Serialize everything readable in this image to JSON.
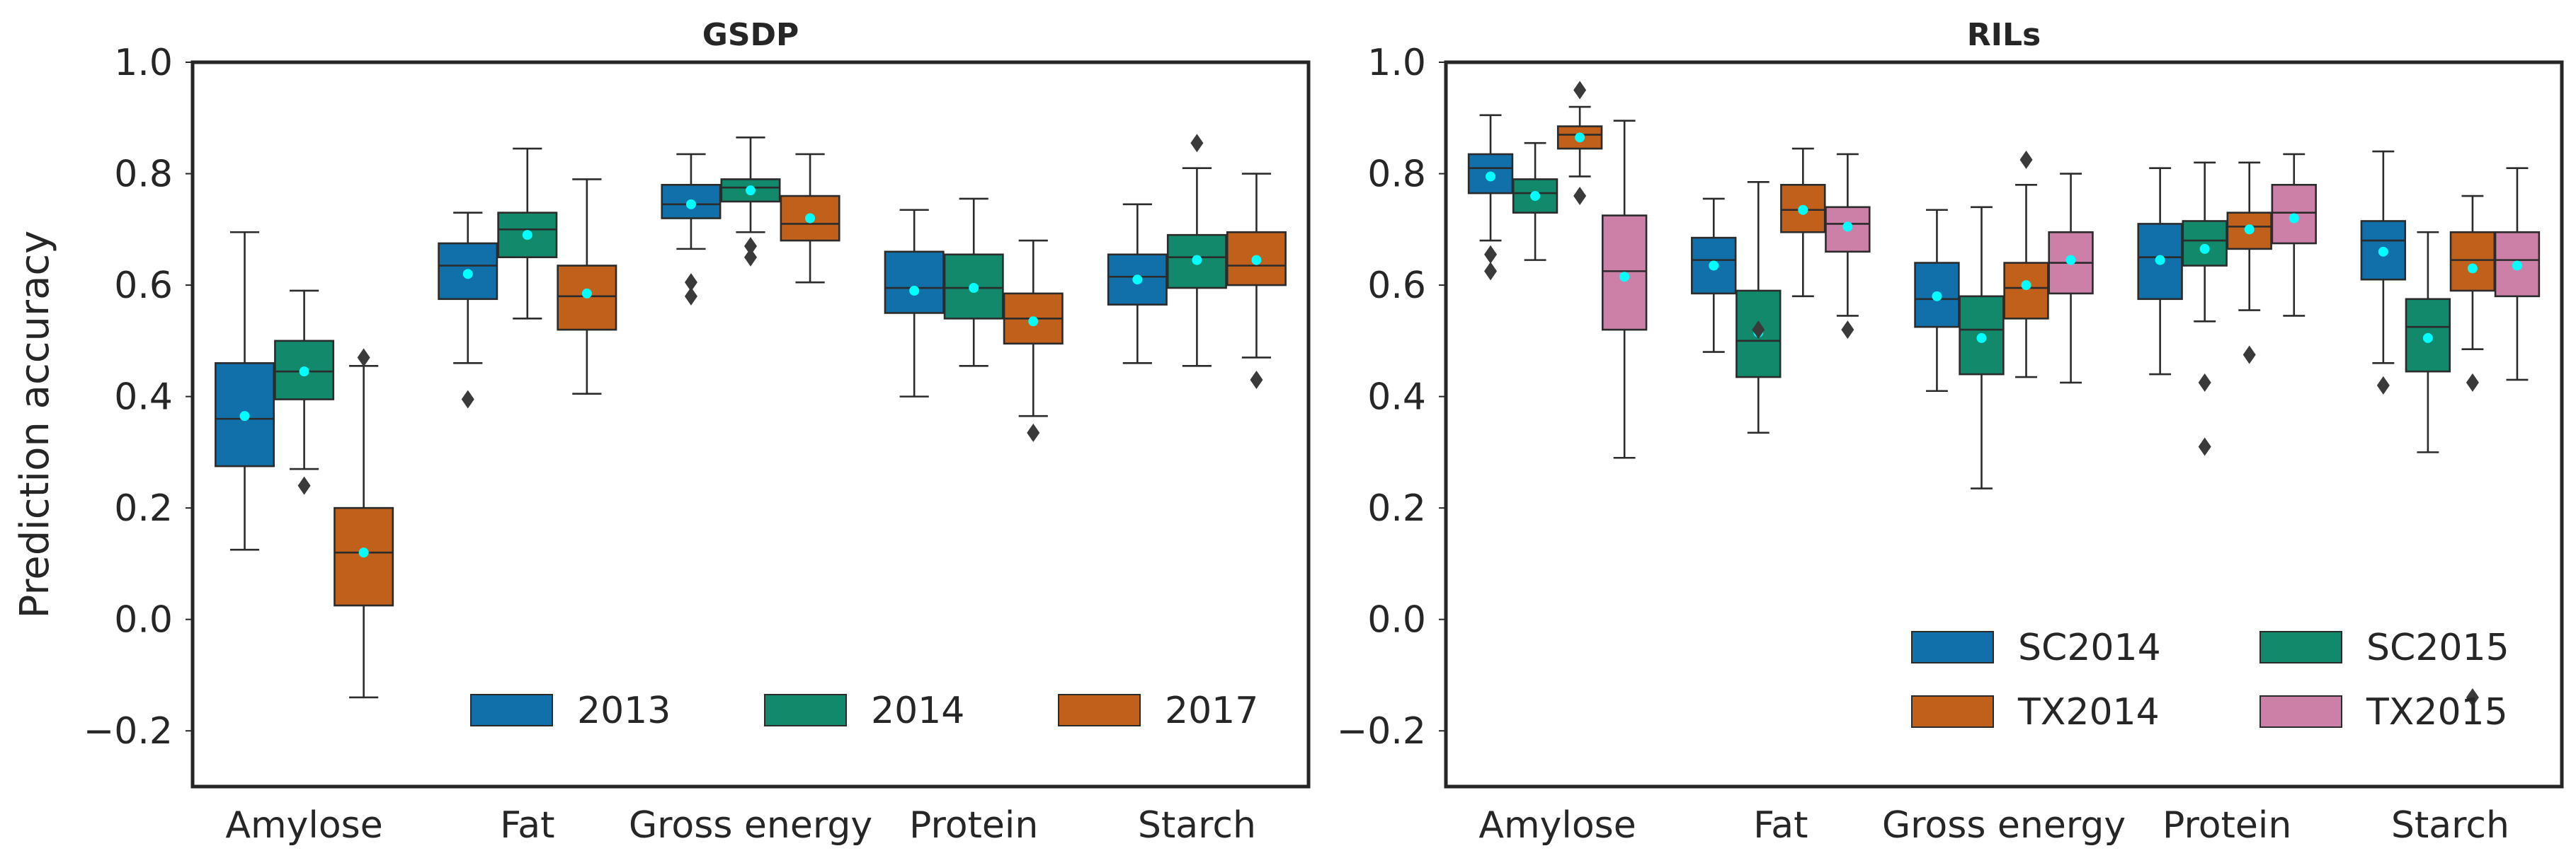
{
  "colors": {
    "2013": "#1170aa",
    "2014": "#11896a",
    "2017": "#c0601a",
    "SC2014": "#1170aa",
    "SC2015": "#11896a",
    "TX2014": "#c0601a",
    "TX2015": "#cc80a8",
    "mean": "#00ffff",
    "line": "#2b2b2b"
  },
  "chart_data": [
    {
      "type": "box",
      "title": "GSDP",
      "ylabel": "Prediction accuracy",
      "xlabel": "",
      "ylim": [
        -0.3,
        1.0
      ],
      "yticks": [
        "1.0",
        "0.8",
        "0.6",
        "0.4",
        "0.2",
        "0.0",
        "−0.2"
      ],
      "ytick_values": [
        1.0,
        0.8,
        0.6,
        0.4,
        0.2,
        0.0,
        -0.2
      ],
      "categories": [
        "Amylose",
        "Fat",
        "Gross energy",
        "Protein",
        "Starch"
      ],
      "legend_position": "lower-right",
      "legend_columns": 3,
      "series": [
        {
          "name": "2013",
          "boxes": [
            {
              "lo": 0.125,
              "q1": 0.275,
              "med": 0.36,
              "q3": 0.46,
              "hi": 0.695,
              "mean": 0.365,
              "fliers": []
            },
            {
              "lo": 0.46,
              "q1": 0.575,
              "med": 0.635,
              "q3": 0.675,
              "hi": 0.73,
              "mean": 0.62,
              "fliers": [
                0.395
              ]
            },
            {
              "lo": 0.665,
              "q1": 0.72,
              "med": 0.745,
              "q3": 0.78,
              "hi": 0.835,
              "mean": 0.745,
              "fliers": [
                0.605,
                0.58
              ]
            },
            {
              "lo": 0.4,
              "q1": 0.55,
              "med": 0.595,
              "q3": 0.66,
              "hi": 0.735,
              "mean": 0.59,
              "fliers": []
            },
            {
              "lo": 0.46,
              "q1": 0.565,
              "med": 0.615,
              "q3": 0.655,
              "hi": 0.745,
              "mean": 0.61,
              "fliers": []
            }
          ]
        },
        {
          "name": "2014",
          "boxes": [
            {
              "lo": 0.27,
              "q1": 0.395,
              "med": 0.445,
              "q3": 0.5,
              "hi": 0.59,
              "mean": 0.445,
              "fliers": [
                0.24
              ]
            },
            {
              "lo": 0.54,
              "q1": 0.65,
              "med": 0.7,
              "q3": 0.73,
              "hi": 0.845,
              "mean": 0.69,
              "fliers": []
            },
            {
              "lo": 0.695,
              "q1": 0.75,
              "med": 0.775,
              "q3": 0.79,
              "hi": 0.865,
              "mean": 0.77,
              "fliers": [
                0.67,
                0.65
              ]
            },
            {
              "lo": 0.455,
              "q1": 0.54,
              "med": 0.595,
              "q3": 0.655,
              "hi": 0.755,
              "mean": 0.595,
              "fliers": []
            },
            {
              "lo": 0.455,
              "q1": 0.595,
              "med": 0.65,
              "q3": 0.69,
              "hi": 0.81,
              "mean": 0.645,
              "fliers": [
                0.855
              ]
            }
          ]
        },
        {
          "name": "2017",
          "boxes": [
            {
              "lo": -0.14,
              "q1": 0.025,
              "med": 0.12,
              "q3": 0.2,
              "hi": 0.455,
              "mean": 0.12,
              "fliers": [
                0.47
              ]
            },
            {
              "lo": 0.405,
              "q1": 0.52,
              "med": 0.58,
              "q3": 0.635,
              "hi": 0.79,
              "mean": 0.585,
              "fliers": []
            },
            {
              "lo": 0.605,
              "q1": 0.68,
              "med": 0.71,
              "q3": 0.76,
              "hi": 0.835,
              "mean": 0.72,
              "fliers": []
            },
            {
              "lo": 0.365,
              "q1": 0.495,
              "med": 0.54,
              "q3": 0.585,
              "hi": 0.68,
              "mean": 0.535,
              "fliers": [
                0.335
              ]
            },
            {
              "lo": 0.47,
              "q1": 0.6,
              "med": 0.635,
              "q3": 0.695,
              "hi": 0.8,
              "mean": 0.645,
              "fliers": [
                0.43
              ]
            }
          ]
        }
      ]
    },
    {
      "type": "box",
      "title": "RILs",
      "ylabel": "",
      "xlabel": "",
      "ylim": [
        -0.3,
        1.0
      ],
      "yticks": [
        "1.0",
        "0.8",
        "0.6",
        "0.4",
        "0.2",
        "0.0",
        "−0.2"
      ],
      "ytick_values": [
        1.0,
        0.8,
        0.6,
        0.4,
        0.2,
        0.0,
        -0.2
      ],
      "categories": [
        "Amylose",
        "Fat",
        "Gross energy",
        "Protein",
        "Starch"
      ],
      "legend_position": "lower-right",
      "legend_columns": 2,
      "series": [
        {
          "name": "SC2014",
          "boxes": [
            {
              "lo": 0.68,
              "q1": 0.765,
              "med": 0.81,
              "q3": 0.835,
              "hi": 0.905,
              "mean": 0.795,
              "fliers": [
                0.655,
                0.625
              ]
            },
            {
              "lo": 0.48,
              "q1": 0.585,
              "med": 0.645,
              "q3": 0.685,
              "hi": 0.755,
              "mean": 0.635,
              "fliers": []
            },
            {
              "lo": 0.41,
              "q1": 0.525,
              "med": 0.575,
              "q3": 0.64,
              "hi": 0.735,
              "mean": 0.58,
              "fliers": []
            },
            {
              "lo": 0.44,
              "q1": 0.575,
              "med": 0.65,
              "q3": 0.71,
              "hi": 0.81,
              "mean": 0.645,
              "fliers": []
            },
            {
              "lo": 0.46,
              "q1": 0.61,
              "med": 0.68,
              "q3": 0.715,
              "hi": 0.84,
              "mean": 0.66,
              "fliers": [
                0.42
              ]
            }
          ]
        },
        {
          "name": "SC2015",
          "boxes": [
            {
              "lo": 0.645,
              "q1": 0.73,
              "med": 0.765,
              "q3": 0.79,
              "hi": 0.855,
              "mean": 0.76,
              "fliers": []
            },
            {
              "lo": 0.335,
              "q1": 0.435,
              "med": 0.5,
              "q3": 0.59,
              "hi": 0.785,
              "mean": 0.515,
              "fliers": [
                0.52
              ]
            },
            {
              "lo": 0.235,
              "q1": 0.44,
              "med": 0.52,
              "q3": 0.58,
              "hi": 0.74,
              "mean": 0.505,
              "fliers": []
            },
            {
              "lo": 0.535,
              "q1": 0.635,
              "med": 0.68,
              "q3": 0.715,
              "hi": 0.82,
              "mean": 0.665,
              "fliers": [
                0.425,
                0.31
              ]
            },
            {
              "lo": 0.3,
              "q1": 0.445,
              "med": 0.525,
              "q3": 0.575,
              "hi": 0.695,
              "mean": 0.505,
              "fliers": []
            }
          ]
        },
        {
          "name": "TX2014",
          "boxes": [
            {
              "lo": 0.795,
              "q1": 0.845,
              "med": 0.87,
              "q3": 0.885,
              "hi": 0.92,
              "mean": 0.865,
              "fliers": [
                0.95,
                0.76
              ]
            },
            {
              "lo": 0.58,
              "q1": 0.695,
              "med": 0.735,
              "q3": 0.78,
              "hi": 0.845,
              "mean": 0.735,
              "fliers": []
            },
            {
              "lo": 0.435,
              "q1": 0.54,
              "med": 0.595,
              "q3": 0.64,
              "hi": 0.78,
              "mean": 0.6,
              "fliers": [
                0.825
              ]
            },
            {
              "lo": 0.555,
              "q1": 0.665,
              "med": 0.705,
              "q3": 0.73,
              "hi": 0.82,
              "mean": 0.7,
              "fliers": [
                0.475
              ]
            },
            {
              "lo": 0.485,
              "q1": 0.59,
              "med": 0.645,
              "q3": 0.695,
              "hi": 0.76,
              "mean": 0.63,
              "fliers": [
                0.425,
                -0.14
              ]
            }
          ]
        },
        {
          "name": "TX2015",
          "boxes": [
            {
              "lo": 0.29,
              "q1": 0.52,
              "med": 0.625,
              "q3": 0.725,
              "hi": 0.895,
              "mean": 0.615,
              "fliers": []
            },
            {
              "lo": 0.545,
              "q1": 0.66,
              "med": 0.71,
              "q3": 0.74,
              "hi": 0.835,
              "mean": 0.705,
              "fliers": [
                0.52
              ]
            },
            {
              "lo": 0.425,
              "q1": 0.585,
              "med": 0.64,
              "q3": 0.695,
              "hi": 0.8,
              "mean": 0.645,
              "fliers": []
            },
            {
              "lo": 0.545,
              "q1": 0.675,
              "med": 0.73,
              "q3": 0.78,
              "hi": 0.835,
              "mean": 0.72,
              "fliers": []
            },
            {
              "lo": 0.43,
              "q1": 0.58,
              "med": 0.645,
              "q3": 0.695,
              "hi": 0.81,
              "mean": 0.635,
              "fliers": []
            }
          ]
        }
      ]
    }
  ]
}
